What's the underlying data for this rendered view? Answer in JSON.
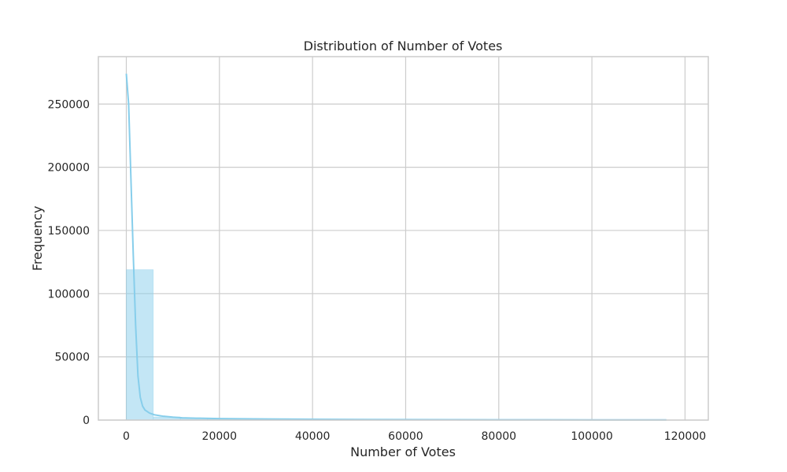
{
  "chart_data": {
    "type": "bar",
    "title": "Distribution of Number of Votes",
    "xlabel": "Number of Votes",
    "ylabel": "Frequency",
    "xlim": [
      -6000,
      125000
    ],
    "ylim": [
      0,
      287500
    ],
    "xticks": [
      0,
      20000,
      40000,
      60000,
      80000,
      100000,
      120000
    ],
    "yticks": [
      0,
      50000,
      100000,
      150000,
      200000,
      250000
    ],
    "grid": true,
    "bar_color": "#87ceeb",
    "kde_color": "#87ceeb",
    "bins": [
      {
        "start": 0,
        "end": 5800,
        "count": 119000
      },
      {
        "start": 5800,
        "end": 11600,
        "count": 2500
      },
      {
        "start": 11600,
        "end": 17400,
        "count": 1200
      },
      {
        "start": 17400,
        "end": 23200,
        "count": 700
      },
      {
        "start": 23200,
        "end": 29000,
        "count": 450
      },
      {
        "start": 29000,
        "end": 34800,
        "count": 300
      },
      {
        "start": 34800,
        "end": 40600,
        "count": 220
      },
      {
        "start": 40600,
        "end": 46400,
        "count": 160
      },
      {
        "start": 46400,
        "end": 52200,
        "count": 120
      },
      {
        "start": 52200,
        "end": 58000,
        "count": 90
      },
      {
        "start": 58000,
        "end": 63800,
        "count": 70
      },
      {
        "start": 63800,
        "end": 69600,
        "count": 55
      },
      {
        "start": 69600,
        "end": 75400,
        "count": 45
      },
      {
        "start": 75400,
        "end": 81200,
        "count": 35
      },
      {
        "start": 81200,
        "end": 87000,
        "count": 28
      },
      {
        "start": 87000,
        "end": 92800,
        "count": 22
      },
      {
        "start": 92800,
        "end": 98600,
        "count": 18
      },
      {
        "start": 98600,
        "end": 104400,
        "count": 14
      },
      {
        "start": 104400,
        "end": 110200,
        "count": 10
      },
      {
        "start": 110200,
        "end": 116000,
        "count": 8
      }
    ],
    "kde": {
      "x": [
        0,
        500,
        1000,
        1500,
        2000,
        2500,
        3000,
        3500,
        4000,
        5000,
        6000,
        8000,
        10000,
        12000,
        15000,
        20000,
        25000,
        30000,
        40000,
        50000,
        60000,
        70000,
        80000,
        90000,
        100000,
        110000,
        116000
      ],
      "y": [
        274000,
        250000,
        190000,
        130000,
        75000,
        35000,
        18000,
        11000,
        8000,
        5500,
        4200,
        3000,
        2300,
        1800,
        1500,
        1200,
        1000,
        850,
        650,
        500,
        400,
        320,
        260,
        210,
        170,
        140,
        120
      ]
    }
  }
}
